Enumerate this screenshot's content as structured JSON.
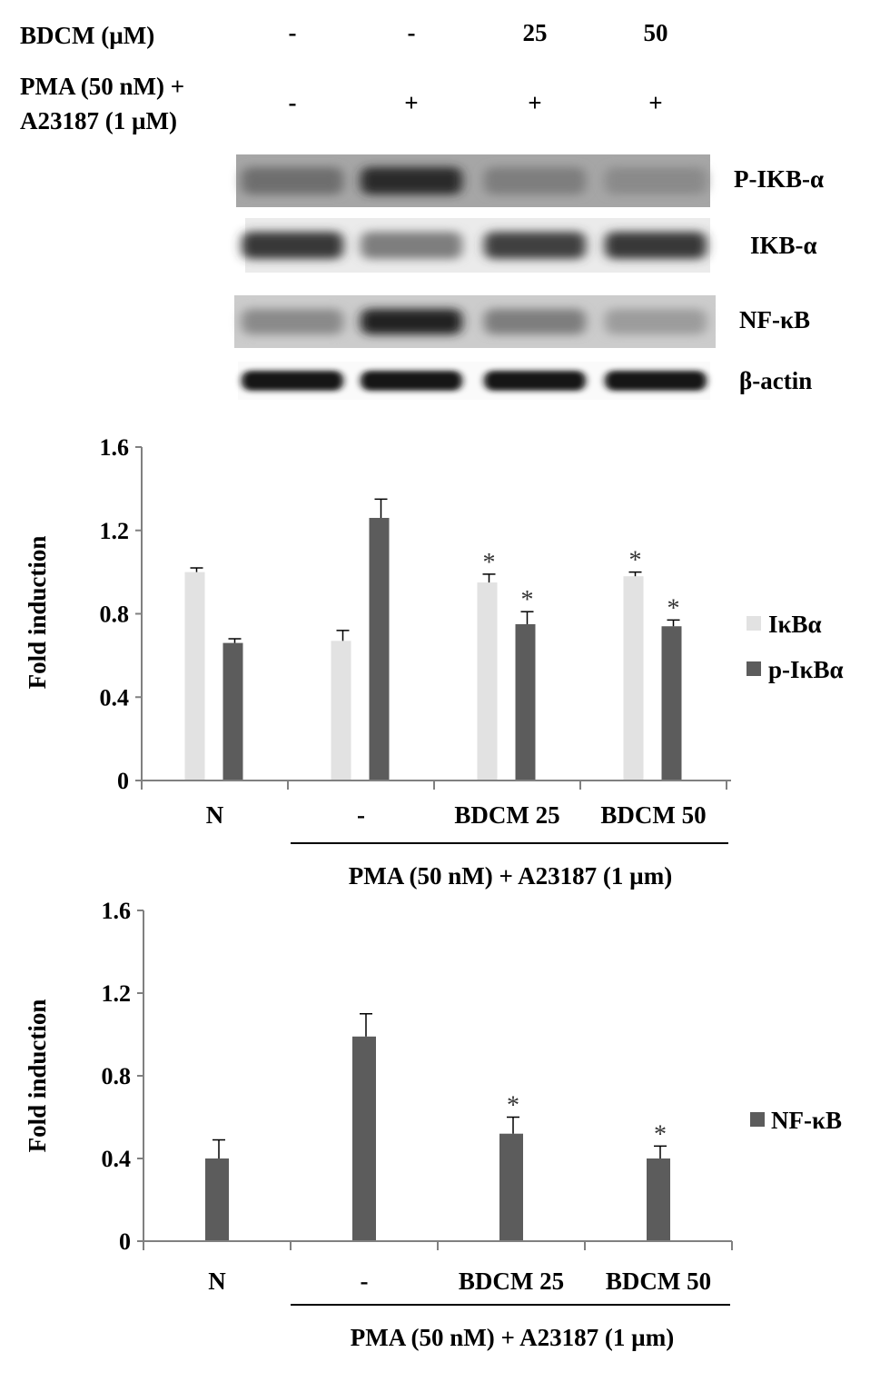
{
  "blot": {
    "conditions": [
      {
        "label": "BDCM (µM)",
        "values": [
          "-",
          "-",
          "25",
          "50"
        ]
      },
      {
        "label_lines": [
          "PMA (50 nM) +",
          "A23187 (1 µM)"
        ],
        "values": [
          "-",
          "+",
          "+",
          "+"
        ]
      }
    ],
    "bands": [
      {
        "name": "P-IKB-α",
        "intensity": [
          0.62,
          0.9,
          0.55,
          0.5
        ],
        "background": 0.35
      },
      {
        "name": "IKB-α",
        "intensity": [
          0.85,
          0.55,
          0.82,
          0.85
        ],
        "background": 0.08
      },
      {
        "name": "NF-κB",
        "intensity": [
          0.5,
          0.95,
          0.55,
          0.42
        ],
        "background": 0.2
      },
      {
        "name": "β-actin",
        "intensity": [
          1.0,
          1.0,
          1.0,
          1.0
        ],
        "background": 0.02
      }
    ]
  },
  "colors": {
    "light_bar": "#e2e2e2",
    "dark_bar": "#5c5c5c",
    "axis": "#808080",
    "text": "#000000"
  },
  "chart_data": [
    {
      "type": "bar",
      "title": "",
      "xlabel": "",
      "ylabel": "Fold induction",
      "ylim": [
        0,
        1.6
      ],
      "yticks": [
        0,
        0.4,
        0.8,
        1.2,
        1.6
      ],
      "ytick_labels": [
        "0",
        "0.4",
        "0.8",
        "1.2",
        "1.6"
      ],
      "categories": [
        "N",
        "-",
        "BDCM 25",
        "BDCM 50"
      ],
      "group_label": "PMA (50 nM) + A23187 (1 µm)",
      "grid": false,
      "legend_position": "right",
      "series": [
        {
          "name": "IκBα",
          "values": [
            1.0,
            0.67,
            0.95,
            0.98
          ],
          "errors": [
            0.02,
            0.05,
            0.04,
            0.02
          ],
          "significant": [
            false,
            false,
            true,
            true
          ],
          "color": "#e2e2e2"
        },
        {
          "name": "p-IκBα",
          "values": [
            0.66,
            1.26,
            0.75,
            0.74
          ],
          "errors": [
            0.02,
            0.09,
            0.06,
            0.03
          ],
          "significant": [
            false,
            false,
            true,
            true
          ],
          "color": "#5c5c5c"
        }
      ]
    },
    {
      "type": "bar",
      "title": "",
      "xlabel": "",
      "ylabel": "Fold induction",
      "ylim": [
        0,
        1.6
      ],
      "yticks": [
        0,
        0.4,
        0.8,
        1.2,
        1.6
      ],
      "ytick_labels": [
        "0",
        "0.4",
        "0.8",
        "1.2",
        "1.6"
      ],
      "categories": [
        "N",
        "-",
        "BDCM 25",
        "BDCM 50"
      ],
      "group_label": "PMA (50 nM) + A23187 (1 µm)",
      "grid": false,
      "legend_position": "right",
      "series": [
        {
          "name": "NF-κB",
          "values": [
            0.4,
            0.99,
            0.52,
            0.4
          ],
          "errors": [
            0.09,
            0.11,
            0.08,
            0.06
          ],
          "significant": [
            false,
            false,
            true,
            true
          ],
          "color": "#5c5c5c"
        }
      ]
    }
  ],
  "significance_mark": "*"
}
